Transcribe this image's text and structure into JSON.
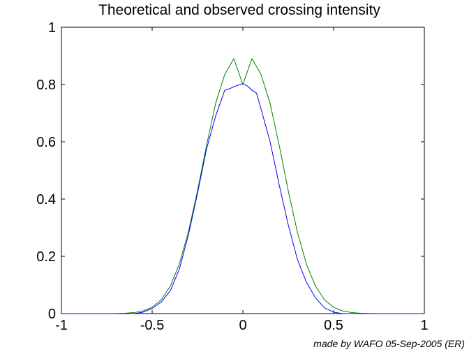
{
  "chart_data": {
    "type": "line",
    "title": "Theoretical and observed crossing intensity",
    "xlabel": "",
    "ylabel": "",
    "xlim": [
      -1,
      1
    ],
    "ylim": [
      0,
      1
    ],
    "x_ticks": [
      "-1",
      "-0.5",
      "0",
      "0.5",
      "1"
    ],
    "y_ticks": [
      "0",
      "0.2",
      "0.4",
      "0.6",
      "0.8",
      "1"
    ],
    "grid": false,
    "legend": "none",
    "series": [
      {
        "color": "#008000",
        "x": [
          -1.0,
          -0.95,
          -0.9,
          -0.85,
          -0.8,
          -0.75,
          -0.7,
          -0.65,
          -0.6,
          -0.55,
          -0.5,
          -0.45,
          -0.4,
          -0.35,
          -0.3,
          -0.25,
          -0.2,
          -0.15,
          -0.1,
          -0.05,
          0.0,
          0.05,
          0.1,
          0.15,
          0.2,
          0.25,
          0.3,
          0.35,
          0.4,
          0.45,
          0.5,
          0.55,
          0.6,
          0.65,
          0.7,
          0.75,
          0.8,
          0.85,
          0.9,
          0.95,
          1.0
        ],
        "y": [
          0.0,
          0.0,
          0.0,
          0.0,
          0.0,
          0.0001,
          0.0004,
          0.0012,
          0.0035,
          0.0092,
          0.0221,
          0.0482,
          0.0958,
          0.1733,
          0.2857,
          0.4293,
          0.5882,
          0.7343,
          0.8349,
          0.8905,
          0.8,
          0.8905,
          0.8349,
          0.7343,
          0.5882,
          0.4293,
          0.2857,
          0.1733,
          0.0958,
          0.0482,
          0.0221,
          0.0092,
          0.0035,
          0.0012,
          0.0004,
          0.0001,
          0.0,
          0.0,
          0.0,
          0.0,
          0.0
        ]
      },
      {
        "color": "#0000ff",
        "x": [
          -1.0,
          -0.9,
          -0.8,
          -0.7,
          -0.6,
          -0.55,
          -0.5,
          -0.45,
          -0.4,
          -0.35,
          -0.3,
          -0.25,
          -0.2,
          -0.15,
          -0.1,
          -0.075,
          -0.05,
          -0.025,
          0.0,
          0.025,
          0.05,
          0.075,
          0.1,
          0.15,
          0.2,
          0.25,
          0.3,
          0.35,
          0.4,
          0.45,
          0.5,
          0.55,
          0.6,
          0.7,
          0.8,
          0.9,
          1.0
        ],
        "y": [
          0.0,
          0.0,
          0.0,
          0.0,
          0.0,
          0.005,
          0.018,
          0.04,
          0.08,
          0.155,
          0.275,
          0.42,
          0.575,
          0.69,
          0.78,
          0.785,
          0.792,
          0.798,
          0.803,
          0.795,
          0.78,
          0.77,
          0.715,
          0.6,
          0.45,
          0.31,
          0.19,
          0.11,
          0.055,
          0.02,
          0.005,
          0.0,
          0.0,
          0.0,
          0.0,
          0.0,
          0.0
        ]
      }
    ]
  },
  "footer": {
    "credit": "made by WAFO 05-Sep-2005 (ER)"
  }
}
